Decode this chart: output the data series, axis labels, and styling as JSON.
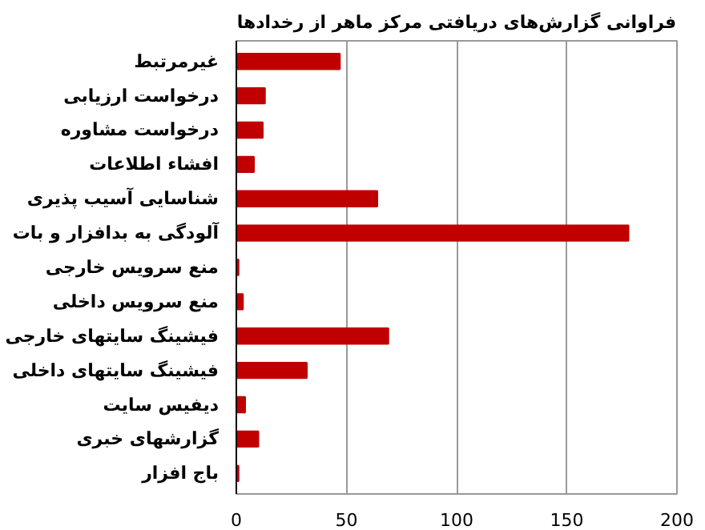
{
  "chart_data": {
    "type": "bar",
    "orientation": "horizontal",
    "title": "فراوانی گزارش‌های دریافتی مرکز ماهر از رخدادها",
    "categories": [
      "غیرمرتبط",
      "درخواست ارزیابی",
      "درخواست مشاوره",
      "افشاء اطلاعات",
      "شناسایی آسیب پذیری",
      "آلودگی به بدافزار و بات",
      "منع سرویس خارجی",
      "منع سرویس داخلی",
      "فیشینگ سایتهای خارجی",
      "فیشینگ سایتهای داخلی",
      "دیفیس سایت",
      "گزارشهای خبری",
      "باج افزار"
    ],
    "values": [
      47,
      13,
      12,
      8,
      64,
      178,
      1,
      3,
      69,
      32,
      4,
      10,
      1
    ],
    "color": "#c00000",
    "xlim": [
      0,
      200
    ],
    "xticks": [
      0,
      50,
      100,
      150,
      200
    ],
    "grid": "x"
  }
}
